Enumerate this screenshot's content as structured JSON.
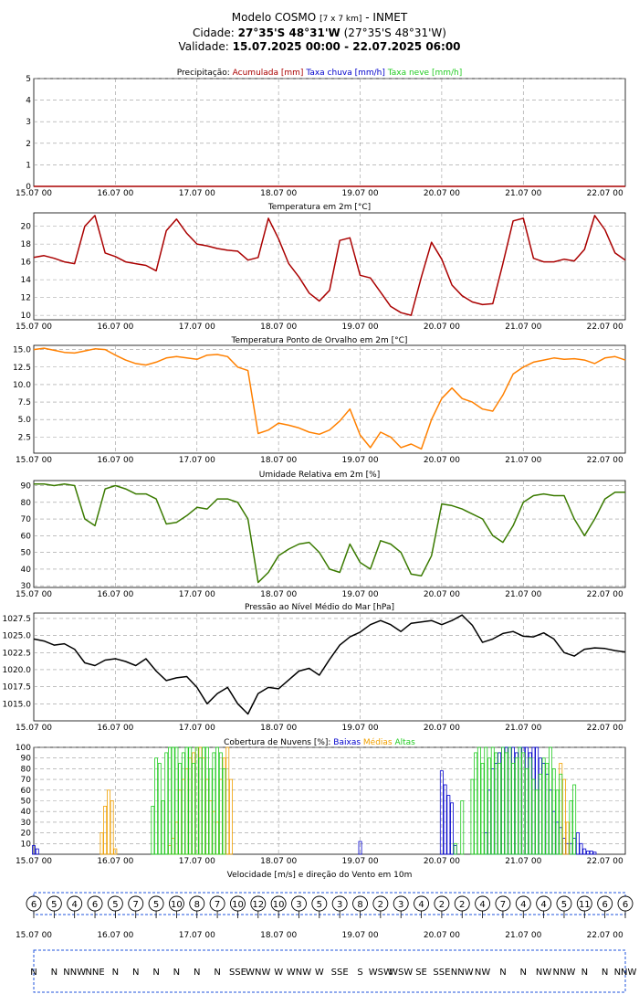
{
  "header": {
    "model": "Modelo COSMO",
    "resolution": "[7 x 7 km]",
    "org": "- INMET",
    "city_label": "Cidade:",
    "city_coords": "27°35'S 48°31'W",
    "city_coords_paren": "(27°35'S 48°31'W)",
    "validity_label": "Validade:",
    "validity": "15.07.2025 00:00 - 22.07.2025 06:00"
  },
  "x_ticks": [
    "15.07 00",
    "16.07 00",
    "17.07 00",
    "18.07 00",
    "19.07 00",
    "20.07 00",
    "21.07 00",
    "22.07 00"
  ],
  "colors": {
    "dark_red": "#aa0000",
    "blue": "#0000cc",
    "green": "#22cc22",
    "orange": "#ff8000",
    "olive": "#3a7a00",
    "black": "#000000",
    "gold": "#f0a000",
    "grid": "#999999"
  },
  "chart_data": [
    {
      "id": "precip",
      "type": "line",
      "title_prefix": "Precipitação:",
      "legend": [
        {
          "label": "Acumulada [mm]",
          "color": "#aa0000"
        },
        {
          "label": "Taxa chuva [mm/h]",
          "color": "#0000cc"
        },
        {
          "label": "Taxa neve [mm/h]",
          "color": "#22cc22"
        }
      ],
      "ylim": [
        0,
        5
      ],
      "yticks": [
        0,
        1,
        2,
        3,
        4,
        5
      ],
      "series": [
        {
          "color": "#aa0000",
          "x": [
            0,
            174
          ],
          "y": [
            0,
            0
          ]
        }
      ]
    },
    {
      "id": "temp",
      "type": "line",
      "title": "Temperatura em 2m [°C]",
      "ylim": [
        9.5,
        21.5
      ],
      "yticks": [
        10,
        12,
        14,
        16,
        18,
        20
      ],
      "series": [
        {
          "color": "#aa0000",
          "x": [
            0,
            3,
            6,
            9,
            12,
            15,
            18,
            21,
            24,
            27,
            30,
            33,
            36,
            39,
            42,
            45,
            48,
            51,
            54,
            57,
            60,
            63,
            66,
            69,
            72,
            75,
            78,
            81,
            84,
            87,
            90,
            93,
            96,
            99,
            102,
            105,
            108,
            111,
            114,
            117,
            120,
            123,
            126,
            129,
            132,
            135,
            138,
            141,
            144,
            147,
            150,
            153,
            156,
            159,
            162,
            165,
            168,
            171,
            174
          ],
          "y": [
            16.5,
            16.7,
            16.4,
            16.0,
            15.8,
            20.0,
            21.2,
            17.0,
            16.6,
            16.0,
            15.8,
            15.6,
            15.0,
            19.5,
            20.8,
            19.2,
            18.0,
            17.8,
            17.5,
            17.3,
            17.2,
            16.2,
            16.5,
            20.9,
            18.6,
            15.8,
            14.3,
            12.5,
            11.6,
            12.8,
            18.4,
            18.7,
            14.5,
            14.2,
            12.6,
            11.0,
            10.3,
            10.0,
            14.3,
            18.2,
            16.3,
            13.4,
            12.2,
            11.5,
            11.2,
            11.3,
            15.8,
            20.6,
            20.9,
            16.4,
            16.0,
            16.0,
            16.3,
            16.1,
            17.4,
            21.2,
            19.6,
            17.0,
            16.2
          ]
        }
      ]
    },
    {
      "id": "dew",
      "type": "line",
      "title": "Temperatura Ponto de Orvalho em 2m [°C]",
      "ylim": [
        0.2,
        15.6
      ],
      "yticks": [
        2.5,
        5.0,
        7.5,
        10.0,
        12.5,
        15.0
      ],
      "ytick_labels": [
        "2.5",
        "5.0",
        "7.5",
        "10.0",
        "12.5",
        "15.0"
      ],
      "series": [
        {
          "color": "#ff8000",
          "x": [
            0,
            3,
            6,
            9,
            12,
            15,
            18,
            21,
            24,
            27,
            30,
            33,
            36,
            39,
            42,
            45,
            48,
            51,
            54,
            57,
            60,
            63,
            66,
            69,
            72,
            75,
            78,
            81,
            84,
            87,
            90,
            93,
            96,
            99,
            102,
            105,
            108,
            111,
            114,
            117,
            120,
            123,
            126,
            129,
            132,
            135,
            138,
            141,
            144,
            147,
            150,
            153,
            156,
            159,
            162,
            165,
            168,
            171,
            174
          ],
          "y": [
            15.0,
            15.2,
            14.9,
            14.6,
            14.5,
            14.8,
            15.1,
            15.0,
            14.2,
            13.5,
            13.0,
            12.8,
            13.2,
            13.8,
            14.0,
            13.8,
            13.6,
            14.2,
            14.3,
            14.0,
            12.5,
            12.0,
            3.0,
            3.5,
            4.5,
            4.2,
            3.8,
            3.2,
            2.9,
            3.5,
            4.8,
            6.5,
            2.8,
            1.0,
            3.2,
            2.5,
            1.0,
            1.5,
            0.8,
            5.0,
            8.0,
            9.5,
            8.0,
            7.5,
            6.5,
            6.2,
            8.5,
            11.5,
            12.5,
            13.2,
            13.5,
            13.8,
            13.6,
            13.7,
            13.5,
            13.0,
            13.8,
            14.0,
            13.5
          ]
        }
      ]
    },
    {
      "id": "rh",
      "type": "line",
      "title": "Umidade Relativa em 2m [%]",
      "ylim": [
        29,
        93
      ],
      "yticks": [
        30,
        40,
        50,
        60,
        70,
        80,
        90
      ],
      "series": [
        {
          "color": "#3a7a00",
          "x": [
            0,
            3,
            6,
            9,
            12,
            15,
            18,
            21,
            24,
            27,
            30,
            33,
            36,
            39,
            42,
            45,
            48,
            51,
            54,
            57,
            60,
            63,
            66,
            69,
            72,
            75,
            78,
            81,
            84,
            87,
            90,
            93,
            96,
            99,
            102,
            105,
            108,
            111,
            114,
            117,
            120,
            123,
            126,
            129,
            132,
            135,
            138,
            141,
            144,
            147,
            150,
            153,
            156,
            159,
            162,
            165,
            168,
            171,
            174
          ],
          "y": [
            91,
            91,
            90,
            91,
            90,
            70,
            66,
            88,
            90,
            88,
            85,
            85,
            82,
            67,
            68,
            72,
            77,
            76,
            82,
            82,
            80,
            70,
            32,
            38,
            48,
            52,
            55,
            56,
            50,
            40,
            38,
            55,
            44,
            40,
            57,
            55,
            50,
            37,
            36,
            48,
            79,
            78,
            76,
            73,
            70,
            60,
            56,
            66,
            80,
            84,
            85,
            84,
            84,
            70,
            60,
            70,
            82,
            86,
            86
          ]
        }
      ]
    },
    {
      "id": "pressure",
      "type": "line",
      "title": "Pressão ao Nível Médio do Mar [hPa]",
      "ylim": [
        1012.5,
        1028.3
      ],
      "yticks": [
        1015.0,
        1017.5,
        1020.0,
        1022.5,
        1025.0,
        1027.5
      ],
      "ytick_labels": [
        "1015.0",
        "1017.5",
        "1020.0",
        "1022.5",
        "1025.0",
        "1027.5"
      ],
      "series": [
        {
          "color": "#000000",
          "x": [
            0,
            3,
            6,
            9,
            12,
            15,
            18,
            21,
            24,
            27,
            30,
            33,
            36,
            39,
            42,
            45,
            48,
            51,
            54,
            57,
            60,
            63,
            66,
            69,
            72,
            75,
            78,
            81,
            84,
            87,
            90,
            93,
            96,
            99,
            102,
            105,
            108,
            111,
            114,
            117,
            120,
            123,
            126,
            129,
            132,
            135,
            138,
            141,
            144,
            147,
            150,
            153,
            156,
            159,
            162,
            165,
            168,
            171,
            174
          ],
          "y": [
            1024.5,
            1024.2,
            1023.6,
            1023.8,
            1023.0,
            1021.0,
            1020.6,
            1021.4,
            1021.6,
            1021.2,
            1020.6,
            1021.6,
            1019.8,
            1018.4,
            1018.8,
            1019.0,
            1017.4,
            1015.0,
            1016.5,
            1017.4,
            1015.0,
            1013.5,
            1016.5,
            1017.4,
            1017.2,
            1018.5,
            1019.8,
            1020.2,
            1019.2,
            1021.5,
            1023.6,
            1024.8,
            1025.5,
            1026.6,
            1027.2,
            1026.6,
            1025.6,
            1026.8,
            1027.0,
            1027.2,
            1026.6,
            1027.2,
            1028.0,
            1026.5,
            1024.0,
            1024.5,
            1025.3,
            1025.6,
            1024.9,
            1024.8,
            1025.4,
            1024.5,
            1022.5,
            1022.0,
            1023.0,
            1023.2,
            1023.1,
            1022.8,
            1022.6
          ]
        }
      ]
    },
    {
      "id": "clouds",
      "type": "bar",
      "title_prefix": "Cobertura de Nuvens [%]:",
      "legend": [
        {
          "label": "Baixas",
          "color": "#0000cc"
        },
        {
          "label": "Médias",
          "color": "#f0a000"
        },
        {
          "label": "Altas",
          "color": "#22cc22"
        }
      ],
      "ylim": [
        0,
        100
      ],
      "yticks": [
        10,
        20,
        30,
        40,
        50,
        60,
        70,
        80,
        90,
        100
      ],
      "series": [
        {
          "name": "Baixas",
          "color": "#0000cc",
          "x": [
            0,
            1,
            96,
            120,
            121,
            122,
            123,
            124,
            133,
            134,
            135,
            136,
            137,
            138,
            139,
            140,
            141,
            142,
            143,
            144,
            145,
            146,
            147,
            148,
            149,
            150,
            151,
            152,
            153,
            154,
            155,
            156,
            157,
            158,
            159,
            160,
            161,
            162,
            163,
            164,
            165
          ],
          "y": [
            8,
            5,
            12,
            78,
            65,
            55,
            48,
            8,
            20,
            60,
            80,
            85,
            95,
            100,
            100,
            100,
            100,
            95,
            100,
            100,
            100,
            95,
            100,
            100,
            90,
            85,
            75,
            60,
            40,
            30,
            25,
            15,
            10,
            10,
            15,
            20,
            10,
            5,
            3,
            3,
            2
          ]
        },
        {
          "name": "Médias",
          "color": "#f0a000",
          "x": [
            20,
            21,
            22,
            23,
            24,
            40,
            41,
            42,
            43,
            44,
            45,
            46,
            47,
            48,
            49,
            50,
            51,
            52,
            53,
            54,
            55,
            56,
            57,
            58,
            155,
            156,
            157
          ],
          "y": [
            20,
            45,
            60,
            50,
            5,
            8,
            15,
            30,
            60,
            70,
            80,
            90,
            95,
            100,
            100,
            90,
            70,
            50,
            40,
            30,
            70,
            90,
            100,
            70,
            85,
            70,
            30
          ]
        },
        {
          "name": "Altas",
          "color": "#22cc22",
          "x": [
            35,
            36,
            37,
            38,
            39,
            40,
            41,
            42,
            43,
            44,
            45,
            46,
            47,
            48,
            49,
            50,
            51,
            52,
            53,
            54,
            55,
            56,
            124,
            126,
            129,
            130,
            131,
            132,
            133,
            134,
            135,
            136,
            137,
            138,
            139,
            140,
            141,
            142,
            143,
            144,
            145,
            146,
            147,
            148,
            149,
            150,
            151,
            152,
            153,
            154,
            155,
            158,
            159
          ],
          "y": [
            45,
            90,
            85,
            50,
            95,
            100,
            100,
            100,
            85,
            95,
            100,
            100,
            85,
            100,
            90,
            100,
            100,
            80,
            95,
            100,
            95,
            80,
            10,
            50,
            70,
            95,
            100,
            85,
            100,
            90,
            100,
            95,
            85,
            100,
            95,
            100,
            85,
            90,
            100,
            95,
            80,
            90,
            70,
            60,
            75,
            90,
            85,
            100,
            80,
            60,
            75,
            50,
            65
          ]
        }
      ]
    },
    {
      "id": "wind",
      "type": "table",
      "title": "Velocidade [m/s] e direção do Vento em 10m",
      "speeds": [
        "6",
        "5",
        "4",
        "6",
        "5",
        "7",
        "5",
        "10",
        "8",
        "7",
        "10",
        "12",
        "10",
        "3",
        "5",
        "3",
        "8",
        "2",
        "3",
        "4",
        "2",
        "2",
        "4",
        "7",
        "4",
        "4",
        "5",
        "11",
        "6",
        "6"
      ],
      "directions": [
        "N",
        "N",
        "NNW",
        "NNE",
        "N",
        "N",
        "N",
        "N",
        "N",
        "N",
        "SSE",
        "WNW",
        "W",
        "WNW",
        "W",
        "SSE",
        "S",
        "WSW",
        "WSW",
        "SE",
        "SSE",
        "NNW",
        "NW",
        "N",
        "N",
        "NW",
        "NNW",
        "N",
        "N",
        "NNW"
      ]
    }
  ]
}
